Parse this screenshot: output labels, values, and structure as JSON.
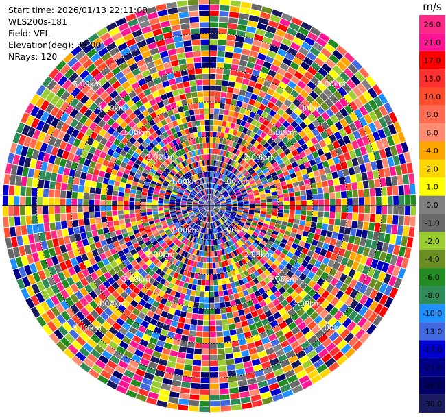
{
  "chart_data": {
    "type": "heatmap",
    "projection": "polar-ppi",
    "info": {
      "start_time_label": "Start time:",
      "start_time": "2026/01/13 22:11:08",
      "instrument": "WLS200s-181",
      "field_label": "Field:",
      "field": "VEL",
      "elevation_label": "Elevation(deg):",
      "elevation": "35.00",
      "nrays_label": "NRays:",
      "nrays": "120"
    },
    "range_km_max": 6.0,
    "range_rings_km": [
      1,
      2,
      3,
      4,
      5
    ],
    "range_ring_labels": [
      "1.00km",
      "2.00km",
      "3.00km",
      "4.00km",
      "5.00km"
    ],
    "range_gates": 36,
    "grid": true,
    "colorbar": {
      "unit": "m/s",
      "placement": "right",
      "tick_labels": [
        "26.0",
        "21.0",
        "17.0",
        "13.0",
        "10.0",
        "8.0",
        "6.0",
        "4.0",
        "2.0",
        "1.0",
        "0.0",
        "-1.0",
        "-2.0",
        "-4.0",
        "-6.0",
        "-8.0",
        "-10.0",
        "-13.0",
        "-17.0",
        "-21.0",
        "-26.0",
        "-30.0"
      ],
      "colors": [
        "#ff2a88",
        "#ff1493",
        "#ff0000",
        "#ff3030",
        "#ff4c2a",
        "#ff6a50",
        "#ff8c70",
        "#ffa500",
        "#ffd700",
        "#ffff00",
        "#808080",
        "#696969",
        "#9acd32",
        "#6b8e23",
        "#228b22",
        "#2e8b57",
        "#1e90ff",
        "#4169e1",
        "#0000cd",
        "#00008b",
        "#000066",
        "#1a1a5e"
      ]
    }
  }
}
